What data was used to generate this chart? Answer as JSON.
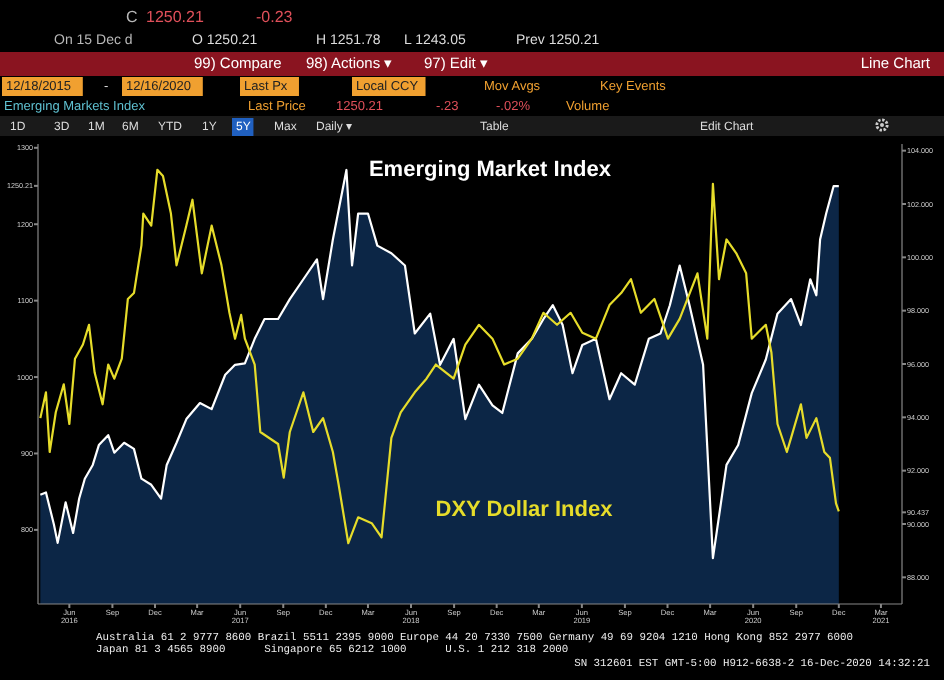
{
  "chart_data": {
    "type": "area",
    "xlim": [
      "2016-03-26",
      "2021-04-15"
    ],
    "xticks": [
      {
        "value": "2016-06-01",
        "label": "Jun\n2016"
      },
      {
        "value": "2016-09-01",
        "label": "Sep"
      },
      {
        "value": "2016-12-01",
        "label": "Dec"
      },
      {
        "value": "2017-03-01",
        "label": "Mar"
      },
      {
        "value": "2017-06-01",
        "label": "Jun\n2017"
      },
      {
        "value": "2017-09-01",
        "label": "Sep"
      },
      {
        "value": "2017-12-01",
        "label": "Dec"
      },
      {
        "value": "2018-03-01",
        "label": "Mar"
      },
      {
        "value": "2018-06-01",
        "label": "Jun\n2018"
      },
      {
        "value": "2018-09-01",
        "label": "Sep"
      },
      {
        "value": "2018-12-01",
        "label": "Dec"
      },
      {
        "value": "2019-03-01",
        "label": "Mar"
      },
      {
        "value": "2019-06-01",
        "label": "Jun\n2019"
      },
      {
        "value": "2019-09-01",
        "label": "Sep"
      },
      {
        "value": "2019-12-01",
        "label": "Dec"
      },
      {
        "value": "2020-03-01",
        "label": "Mar"
      },
      {
        "value": "2020-06-01",
        "label": "Jun\n2020"
      },
      {
        "value": "2020-09-01",
        "label": "Sep"
      },
      {
        "value": "2020-12-01",
        "label": "Dec"
      },
      {
        "value": "2021-03-01",
        "label": "Mar\n2021"
      }
    ],
    "ylim": [
      703,
      1305
    ],
    "yticks": [
      800,
      900,
      1000,
      1100,
      1200,
      {
        "value": 1250.21,
        "label": "1250.21"
      },
      1300
    ],
    "y2lim": [
      87.0,
      104.25
    ],
    "y2ticks": [
      {
        "value": 88,
        "label": "88.000"
      },
      {
        "value": 90,
        "label": "90.000"
      },
      {
        "value": 90.437,
        "label": "90.437"
      },
      {
        "value": 92,
        "label": "92.000"
      },
      {
        "value": 94,
        "label": "94.000"
      },
      {
        "value": 96,
        "label": "96.000"
      },
      {
        "value": 98,
        "label": "98.000"
      },
      {
        "value": 100,
        "label": "100.000"
      },
      {
        "value": 102,
        "label": "102.000"
      },
      {
        "value": 104,
        "label": "104.000"
      }
    ],
    "series": [
      {
        "name": "Emerging Market Index",
        "color": "#ffffff",
        "x": [
          "2016-03-31",
          "2016-04-12",
          "2016-04-29",
          "2016-05-07",
          "2016-05-24",
          "2016-06-09",
          "2016-06-22",
          "2016-07-04",
          "2016-07-21",
          "2016-08-03",
          "2016-08-23",
          "2016-09-05",
          "2016-09-26",
          "2016-10-17",
          "2016-11-02",
          "2016-11-23",
          "2016-12-14",
          "2016-12-26",
          "2017-01-16",
          "2017-02-06",
          "2017-03-07",
          "2017-04-01",
          "2017-04-30",
          "2017-05-21",
          "2017-06-11",
          "2017-07-02",
          "2017-07-23",
          "2017-08-21",
          "2017-09-15",
          "2017-10-14",
          "2017-11-12",
          "2017-11-25",
          "2017-12-16",
          "2018-01-14",
          "2018-01-26",
          "2018-02-08",
          "2018-03-01",
          "2018-03-21",
          "2018-04-20",
          "2018-05-19",
          "2018-06-09",
          "2018-07-12",
          "2018-08-02",
          "2018-08-31",
          "2018-09-25",
          "2018-10-24",
          "2018-11-22",
          "2018-12-13",
          "2019-01-15",
          "2019-02-14",
          "2019-03-11",
          "2019-03-31",
          "2019-04-21",
          "2019-05-12",
          "2019-06-02",
          "2019-07-01",
          "2019-07-30",
          "2019-08-24",
          "2019-09-22",
          "2019-10-22",
          "2019-11-16",
          "2019-12-06",
          "2019-12-27",
          "2020-01-17",
          "2020-02-15",
          "2020-03-07",
          "2020-04-05",
          "2020-04-30",
          "2020-05-29",
          "2020-06-28",
          "2020-07-23",
          "2020-08-21",
          "2020-09-11",
          "2020-10-01",
          "2020-10-14",
          "2020-10-22",
          "2020-11-04",
          "2020-11-20",
          "2020-12-01"
        ],
        "values": [
          846,
          849,
          807,
          783,
          836,
          796,
          841,
          867,
          885,
          911,
          924,
          901,
          914,
          906,
          867,
          859,
          841,
          885,
          914,
          945,
          966,
          958,
          1003,
          1016,
          1018,
          1050,
          1076,
          1076,
          1102,
          1128,
          1154,
          1102,
          1180,
          1271,
          1146,
          1214,
          1214,
          1172,
          1162,
          1146,
          1057,
          1083,
          1016,
          1050,
          945,
          990,
          963,
          953,
          1031,
          1050,
          1076,
          1094,
          1068,
          1005,
          1042,
          1050,
          971,
          1005,
          990,
          1050,
          1057,
          1094,
          1146,
          1094,
          1016,
          763,
          885,
          911,
          979,
          1023,
          1083,
          1102,
          1068,
          1128,
          1107,
          1180,
          1214,
          1250,
          1250
        ]
      },
      {
        "name": "DXY Dollar Index",
        "type": "line",
        "axis": "y2",
        "color": "#e6dc2a",
        "x": [
          "2016-03-31",
          "2016-04-12",
          "2016-04-20",
          "2016-05-03",
          "2016-05-20",
          "2016-06-01",
          "2016-06-13",
          "2016-06-30",
          "2016-07-13",
          "2016-07-25",
          "2016-08-11",
          "2016-08-23",
          "2016-09-05",
          "2016-09-21",
          "2016-10-04",
          "2016-10-17",
          "2016-11-02",
          "2016-11-06",
          "2016-11-23",
          "2016-12-06",
          "2016-12-18",
          "2017-01-04",
          "2017-01-16",
          "2017-02-06",
          "2017-02-19",
          "2017-03-11",
          "2017-04-01",
          "2017-04-22",
          "2017-05-09",
          "2017-05-21",
          "2017-06-03",
          "2017-06-11",
          "2017-07-02",
          "2017-07-14",
          "2017-08-21",
          "2017-09-02",
          "2017-09-15",
          "2017-10-14",
          "2017-11-04",
          "2017-11-25",
          "2017-12-16",
          "2017-12-28",
          "2018-01-18",
          "2018-02-08",
          "2018-03-09",
          "2018-03-30",
          "2018-04-20",
          "2018-05-10",
          "2018-06-09",
          "2018-07-04",
          "2018-07-24",
          "2018-08-31",
          "2018-09-25",
          "2018-10-24",
          "2018-11-22",
          "2018-12-17",
          "2019-01-15",
          "2019-02-14",
          "2019-03-11",
          "2019-04-09",
          "2019-05-08",
          "2019-06-02",
          "2019-07-01",
          "2019-07-30",
          "2019-08-24",
          "2019-09-14",
          "2019-10-05",
          "2019-11-03",
          "2019-12-02",
          "2019-12-27",
          "2020-02-03",
          "2020-02-24",
          "2020-03-07",
          "2020-03-20",
          "2020-04-05",
          "2020-04-26",
          "2020-05-17",
          "2020-05-29",
          "2020-06-28",
          "2020-07-10",
          "2020-07-23",
          "2020-08-12",
          "2020-08-21",
          "2020-09-11",
          "2020-09-23",
          "2020-10-14",
          "2020-10-31",
          "2020-11-12",
          "2020-11-25",
          "2020-12-01"
        ],
        "values": [
          93.97,
          94.94,
          92.7,
          94.19,
          95.24,
          93.75,
          96.2,
          96.73,
          97.47,
          95.68,
          94.49,
          95.98,
          95.45,
          96.2,
          98.44,
          98.66,
          100.45,
          101.64,
          101.19,
          103.28,
          103.05,
          101.64,
          99.7,
          101.19,
          102.16,
          99.4,
          101.19,
          99.7,
          97.92,
          96.95,
          97.84,
          96.95,
          95.98,
          93.45,
          93.0,
          91.74,
          93.45,
          94.94,
          93.45,
          93.97,
          92.7,
          91.51,
          89.28,
          90.25,
          90.03,
          89.5,
          93.23,
          94.19,
          94.94,
          95.45,
          95.98,
          95.45,
          96.73,
          97.47,
          96.95,
          95.98,
          96.2,
          96.95,
          97.92,
          97.47,
          97.92,
          97.17,
          96.95,
          98.21,
          98.66,
          99.18,
          97.92,
          98.44,
          96.95,
          97.69,
          99.4,
          96.95,
          102.76,
          99.18,
          100.67,
          100.15,
          99.4,
          96.95,
          97.47,
          96.43,
          93.75,
          92.7,
          93.23,
          94.49,
          93.23,
          93.97,
          92.7,
          92.48,
          90.77,
          90.47
        ]
      }
    ],
    "annotations": [
      "C",
      "1250.21",
      "-0.23",
      "On 15 Dec d",
      "O 1250.21",
      "H 1251.78",
      "L 1243.05",
      "Prev 1250.21",
      "99) Compare",
      "98) Actions ▾",
      "97) Edit ▾",
      "Line Chart",
      "12/18/2015",
      "-",
      "12/16/2020",
      "Last Px",
      "Local CCY",
      "Mov Avgs",
      "Key Events",
      "Emerging Markets Index",
      "Last Price",
      "1250.21",
      "-.23",
      "-.02%",
      "Volume",
      "1D",
      "3D",
      "1M",
      "6M",
      "YTD",
      "1Y",
      "5Y",
      "Max",
      "Daily ▾",
      "Table",
      "Edit Chart",
      "Australia 61 2 9777 8600 Brazil 5511 2395 9000 Europe 44 20 7330 7500 Germany 49 69 9204 1210 Hong Kong 852 2977 6000",
      "Japan 81 3 4565 8900      Singapore 65 6212 1000      U.S. 1 212 318 2000",
      "SN 312601 EST GMT-5:00 H912-6638-2 16-Dec-2020 14:32:21"
    ]
  }
}
